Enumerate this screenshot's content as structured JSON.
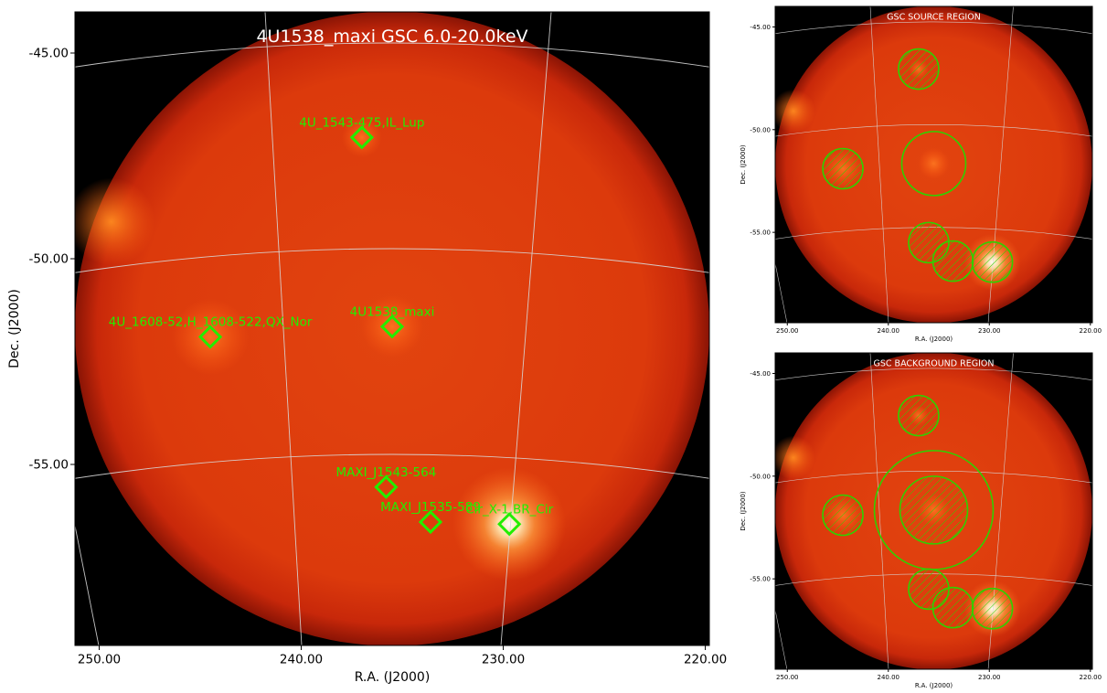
{
  "chart_data": [
    {
      "type": "image",
      "title": "4U1538_maxi GSC 6.0-20.0keV",
      "xlabel": "R.A. (J2000)",
      "ylabel": "Dec. (J2000)",
      "xlim": [
        251.2,
        219.8
      ],
      "ylim": [
        -59.4,
        -44.0
      ],
      "x_ticks": [
        "250.00",
        "240.00",
        "230.00",
        "220.00"
      ],
      "x_tick_values": [
        250,
        240,
        230,
        220
      ],
      "y_ticks": [
        "-45.00",
        "-50.00",
        "-55.00"
      ],
      "y_tick_values": [
        -45,
        -50,
        -55
      ],
      "grid": true,
      "sources": [
        {
          "name": "4U_1543-475,IL_Lup",
          "ra": 237.0,
          "dec": -47.05
        },
        {
          "name": "4U_1608-52,H_1608-522,QX_Nor",
          "ra": 244.5,
          "dec": -51.9
        },
        {
          "name": "4U1538_maxi",
          "ra": 235.5,
          "dec": -51.65
        },
        {
          "name": "MAXI_J1543-564",
          "ra": 235.8,
          "dec": -55.55
        },
        {
          "name": "MAXI_J1535-589",
          "ra": 233.6,
          "dec": -56.4
        },
        {
          "name": "Cir_X-1,BR_Cir",
          "ra": 229.7,
          "dec": -56.45
        }
      ]
    },
    {
      "type": "image",
      "title": "GSC SOURCE REGION",
      "xlabel": "R.A. (J2000)",
      "ylabel": "Dec. (J2000)",
      "x_ticks": [
        "250.00",
        "240.00",
        "230.00",
        "220.00"
      ],
      "y_ticks": [
        "-45.00",
        "-50.00",
        "-55.00"
      ],
      "regions": [
        "source-circle",
        "excluded-hatched-circles"
      ]
    },
    {
      "type": "image",
      "title": "GSC BACKGROUND REGION",
      "xlabel": "R.A. (J2000)",
      "ylabel": "Dec. (J2000)",
      "x_ticks": [
        "250.00",
        "240.00",
        "230.00",
        "220.00"
      ],
      "y_ticks": [
        "-45.00",
        "-50.00",
        "-55.00"
      ],
      "regions": [
        "background-annulus",
        "excluded-hatched-circles"
      ]
    }
  ],
  "colors": {
    "disk": "#dc3a0e",
    "marker": "#22ee00",
    "grid": "#d8d8d8",
    "outside": "#000000"
  }
}
